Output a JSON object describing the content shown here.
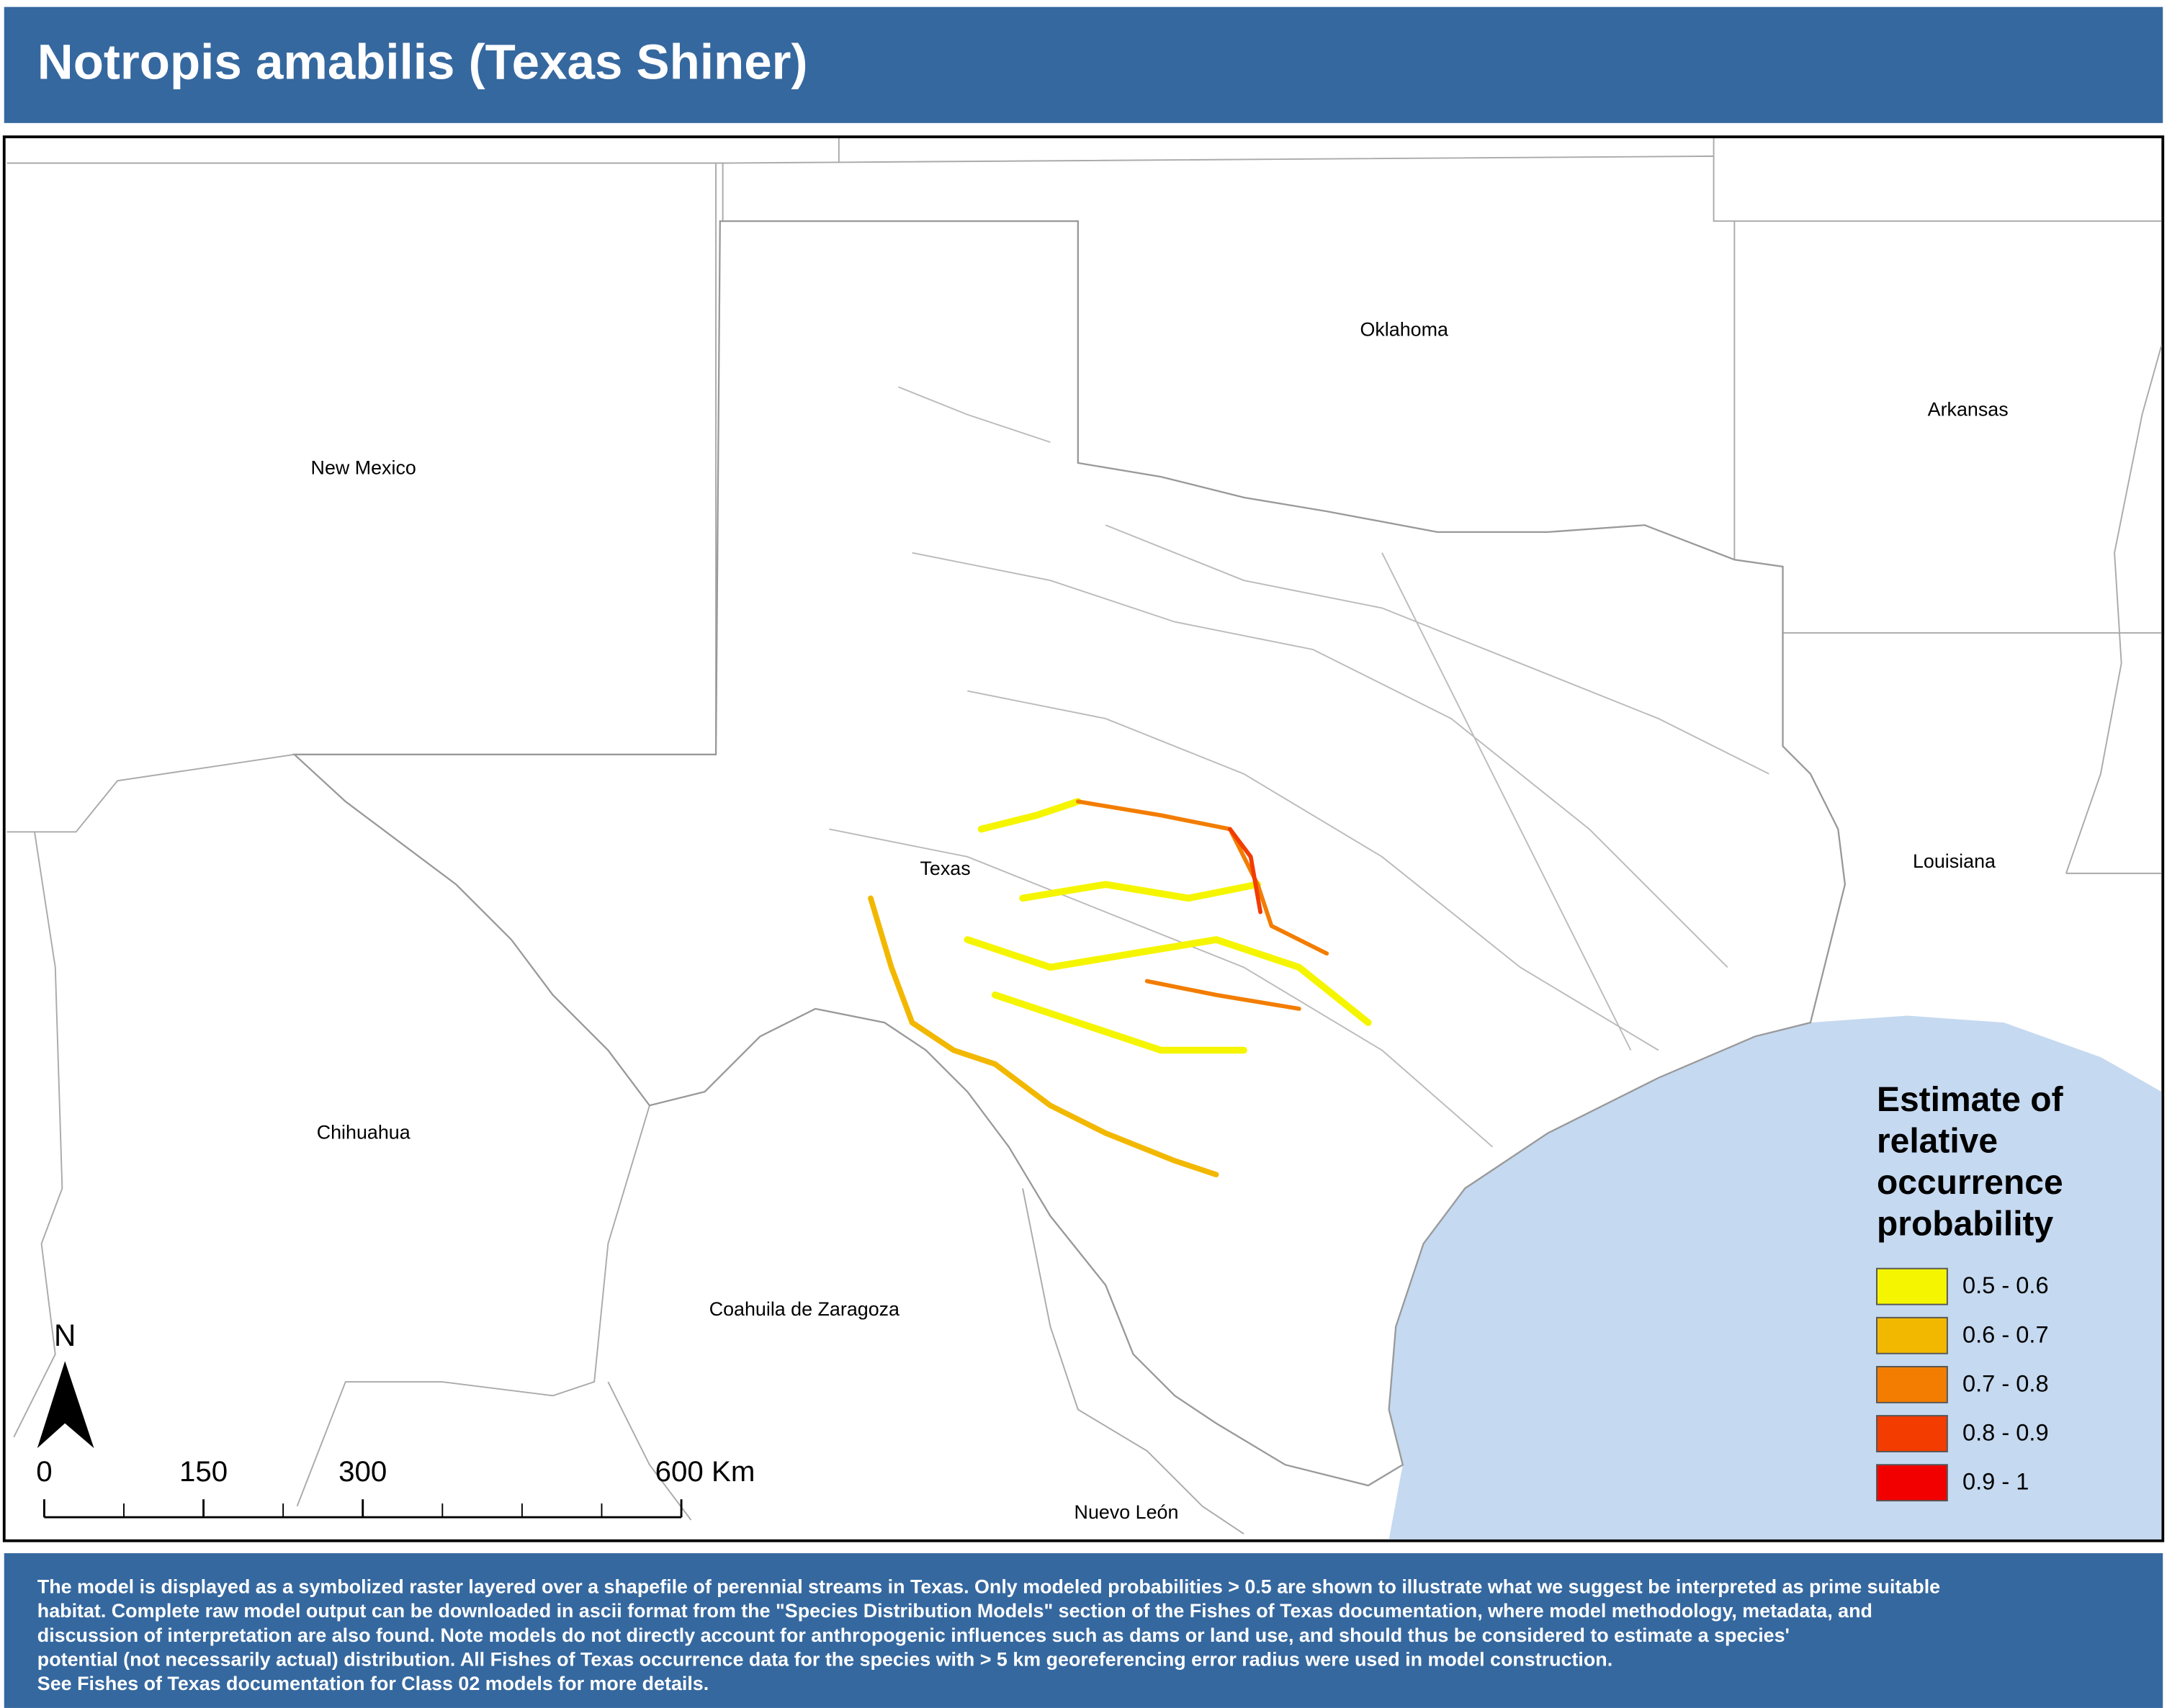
{
  "header": {
    "title": "Notropis amabilis (Texas Shiner)"
  },
  "map": {
    "places": [
      {
        "name": "New Mexico"
      },
      {
        "name": "Oklahoma"
      },
      {
        "name": "Arkansas"
      },
      {
        "name": "Louisiana"
      },
      {
        "name": "Texas"
      },
      {
        "name": "Chihuahua"
      },
      {
        "name": "Coahuila de Zaragoza"
      },
      {
        "name": "Nuevo León"
      }
    ],
    "north": "N",
    "scale_bar": {
      "ticks": [
        0,
        150,
        300,
        {
          "value": 600,
          "label": "600 Km"
        }
      ],
      "range": [
        0,
        600
      ]
    }
  },
  "legend": {
    "title": [
      "Estimate of",
      "relative",
      "occurrence",
      "probability"
    ],
    "items": [
      {
        "label": "0.5 - 0.6",
        "color": "#f5f500"
      },
      {
        "label": "0.6 - 0.7",
        "color": "#f2b800"
      },
      {
        "label": "0.7 - 0.8",
        "color": "#f27d00"
      },
      {
        "label": "0.8 - 0.9",
        "color": "#f23c00"
      },
      {
        "label": "0.9 - 1",
        "color": "#f20000"
      }
    ]
  },
  "footer": {
    "lines": [
      "The model is displayed as a symbolized raster layered over a shapefile of perennial streams in Texas. Only modeled probabilities > 0.5 are shown to illustrate what we suggest be interpreted as prime suitable",
      "habitat. Complete raw model output can be downloaded in ascii format from the \"Species Distribution Models\" section of the Fishes of Texas documentation, where model methodology, metadata, and",
      " discussion of interpretation are also found. Note models do not directly account for anthropogenic influences such as dams or land use, and should thus be considered to estimate a species'",
      "potential (not necessarily actual) distribution. All Fishes of Texas occurrence data for the species with > 5 km georeferencing error radius were used in model construction.",
      "See Fishes of Texas documentation for Class 02 models for more details."
    ]
  }
}
